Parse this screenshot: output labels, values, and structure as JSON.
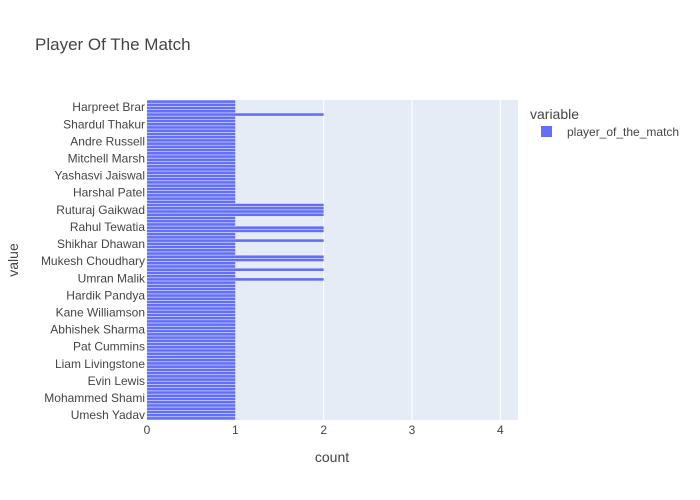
{
  "chart_data": {
    "type": "bar",
    "orientation": "horizontal",
    "title": "Player Of The Match",
    "xlabel": "count",
    "ylabel": "value",
    "xlim": [
      0,
      4.2
    ],
    "xticks": [
      0,
      1,
      2,
      3,
      4
    ],
    "grid": true,
    "legend_position": "top-right",
    "legend_title": "variable",
    "bar_color": "#636efa",
    "plot_bg": "#e5ecf6",
    "tick_labels": [
      "Harpreet Brar",
      "Shardul Thakur",
      "Andre Russell",
      "Mitchell Marsh",
      "Yashasvi Jaiswal",
      "Harshal Patel",
      "Ruturaj Gaikwad",
      "Rahul Tewatia",
      "Shikhar Dhawan",
      "Mukesh Choudhary",
      "Umran Malik",
      "Hardik Pandya",
      "Kane Williamson",
      "Abhishek Sharma",
      "Pat Cummins",
      "Liam Livingstone",
      "Evin Lewis",
      "Mohammed Shami",
      "Umesh Yadav"
    ],
    "series": [
      {
        "name": "player_of_the_match",
        "values": [
          1,
          1,
          1,
          1,
          1,
          1,
          1,
          1,
          1,
          1,
          1,
          1,
          1,
          1,
          1,
          1,
          1,
          1,
          1,
          1,
          1,
          1,
          1,
          1,
          1,
          1,
          1,
          1,
          1,
          1,
          1,
          1,
          1,
          1,
          1,
          1,
          1,
          1,
          1,
          1,
          1,
          1,
          1,
          2,
          1,
          1,
          2,
          1,
          1,
          2,
          2,
          1,
          1,
          1,
          1,
          2,
          1,
          1,
          2,
          2,
          1,
          1,
          1,
          2,
          2,
          2,
          2,
          1,
          1,
          1,
          1,
          1,
          1,
          1,
          1,
          1,
          1,
          1,
          1,
          1,
          1,
          1,
          1,
          1,
          1,
          1,
          1,
          1,
          1,
          1,
          1,
          1,
          1,
          1,
          2,
          1,
          1,
          1,
          1
        ]
      }
    ]
  }
}
